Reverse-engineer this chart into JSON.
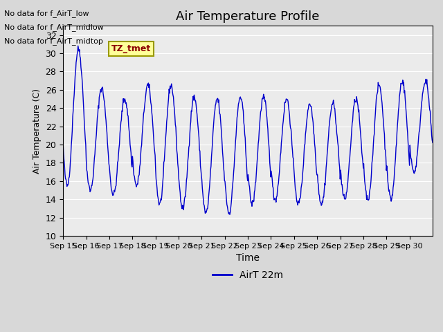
{
  "title": "Air Temperature Profile",
  "xlabel": "Time",
  "ylabel": "Air Temperature (C)",
  "ylim": [
    10,
    33
  ],
  "yticks": [
    10,
    12,
    14,
    16,
    18,
    20,
    22,
    24,
    26,
    28,
    30,
    32
  ],
  "x_labels": [
    "Sep 15",
    "Sep 16",
    "Sep 17",
    "Sep 18",
    "Sep 19",
    "Sep 20",
    "Sep 21",
    "Sep 22",
    "Sep 23",
    "Sep 24",
    "Sep 25",
    "Sep 26",
    "Sep 27",
    "Sep 28",
    "Sep 29",
    "Sep 30"
  ],
  "line_color": "#0000cc",
  "background_color": "#d8d8d8",
  "plot_bg_color": "#ebebeb",
  "annotations": [
    "No data for f_AirT_low",
    "No data for f_AirT_midlow",
    "No data for f_AirT_midtop"
  ],
  "tooltip_text": "TZ_tmet",
  "legend_label": "AirT 22m",
  "day_peaks": [
    30.5,
    26.2,
    25.0,
    26.5,
    26.5,
    25.2,
    25.0,
    25.2,
    25.2,
    25.0,
    24.5,
    24.5,
    25.0,
    26.5,
    27.0,
    27.0
  ],
  "day_troughs": [
    15.5,
    15.0,
    14.5,
    15.5,
    13.5,
    13.0,
    12.5,
    12.5,
    13.5,
    14.0,
    13.5,
    13.5,
    14.0,
    14.0,
    14.0,
    17.0
  ]
}
